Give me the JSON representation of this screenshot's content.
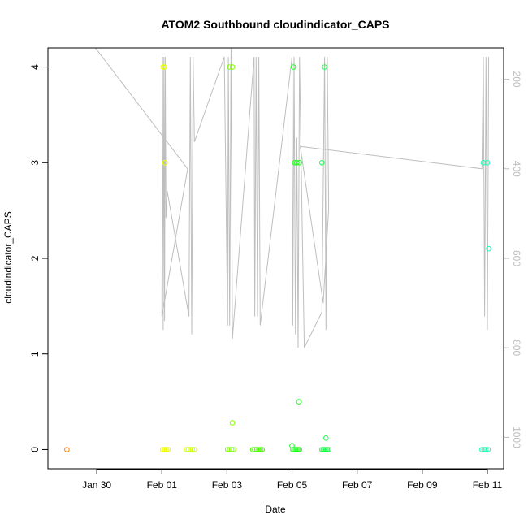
{
  "chart_data": {
    "type": "scatter",
    "title": "ATOM2 Southbound cloudindicator_CAPS",
    "xlabel": "Date",
    "ylabel": "cloudindicator_CAPS",
    "xlim": [
      "2024-01-28 12:00",
      "2024-02-11 12:00"
    ],
    "ylim": [
      -0.2,
      4.2
    ],
    "x_ticks": [
      {
        "date": "2024-01-30",
        "label": "Jan 30"
      },
      {
        "date": "2024-02-01",
        "label": "Feb 01"
      },
      {
        "date": "2024-02-03",
        "label": "Feb 03"
      },
      {
        "date": "2024-02-05",
        "label": "Feb 05"
      },
      {
        "date": "2024-02-07",
        "label": "Feb 07"
      },
      {
        "date": "2024-02-09",
        "label": "Feb 09"
      },
      {
        "date": "2024-02-11",
        "label": "Feb 11"
      }
    ],
    "y_ticks": [
      0,
      1,
      2,
      3,
      4
    ],
    "right_axis": {
      "ticks": [
        "200",
        "400",
        "600",
        "800",
        "1000"
      ],
      "values": [
        200,
        400,
        600,
        800,
        1000
      ],
      "range": [
        1070,
        130
      ],
      "color": "#bebebe",
      "reversed": true
    },
    "grid": false,
    "legend": "none",
    "series": [
      {
        "color": "#ff7f00",
        "points": [
          [
            "2024-01-29 02:00",
            0
          ]
        ]
      },
      {
        "color": "#eeff00",
        "points": [
          [
            "2024-02-01 01:00",
            4
          ],
          [
            "2024-02-01 01:50",
            4
          ],
          [
            "2024-02-01 02:20",
            3
          ],
          [
            "2024-02-01 00:30",
            0
          ],
          [
            "2024-02-01 01:30",
            0
          ],
          [
            "2024-02-01 02:30",
            0
          ],
          [
            "2024-02-01 03:30",
            0
          ],
          [
            "2024-02-01 04:30",
            0
          ]
        ]
      },
      {
        "color": "#c8ff00",
        "points": [
          [
            "2024-02-01 18:00",
            0
          ],
          [
            "2024-02-01 19:30",
            0
          ],
          [
            "2024-02-01 21:00",
            0
          ],
          [
            "2024-02-01 22:30",
            0
          ],
          [
            "2024-02-02 00:00",
            0
          ]
        ]
      },
      {
        "color": "#7fff00",
        "points": [
          [
            "2024-02-03 02:00",
            4
          ],
          [
            "2024-02-03 04:00",
            4
          ],
          [
            "2024-02-03 04:00",
            0.28
          ],
          [
            "2024-02-03 00:30",
            0
          ],
          [
            "2024-02-03 02:00",
            0
          ],
          [
            "2024-02-03 03:30",
            0
          ],
          [
            "2024-02-03 05:00",
            0
          ]
        ]
      },
      {
        "color": "#4cff00",
        "points": [
          [
            "2024-02-03 19:00",
            0
          ],
          [
            "2024-02-03 20:30",
            0
          ],
          [
            "2024-02-03 22:00",
            0
          ],
          [
            "2024-02-03 23:30",
            0
          ],
          [
            "2024-02-04 01:00",
            0
          ],
          [
            "2024-02-04 02:00",
            0
          ]
        ]
      },
      {
        "color": "#1aff1a",
        "points": [
          [
            "2024-02-05 01:00",
            4
          ],
          [
            "2024-02-05 02:00",
            3
          ],
          [
            "2024-02-05 03:30",
            3
          ],
          [
            "2024-02-05 05:30",
            3
          ],
          [
            "2024-02-05 00:00",
            0.04
          ],
          [
            "2024-02-05 05:00",
            0.5
          ],
          [
            "2024-02-05 00:30",
            0
          ],
          [
            "2024-02-05 01:30",
            0
          ],
          [
            "2024-02-05 02:30",
            0
          ],
          [
            "2024-02-05 03:30",
            0
          ],
          [
            "2024-02-05 04:30",
            0
          ],
          [
            "2024-02-05 05:30",
            0
          ]
        ]
      },
      {
        "color": "#1aff4c",
        "points": [
          [
            "2024-02-05 22:00",
            3
          ],
          [
            "2024-02-06 00:00",
            4
          ],
          [
            "2024-02-06 01:00",
            0.12
          ],
          [
            "2024-02-05 22:00",
            0
          ],
          [
            "2024-02-05 23:00",
            0
          ],
          [
            "2024-02-06 00:00",
            0
          ],
          [
            "2024-02-06 01:00",
            0
          ],
          [
            "2024-02-06 02:00",
            0
          ],
          [
            "2024-02-06 03:00",
            0
          ]
        ]
      },
      {
        "color": "#1affb3",
        "points": [
          [
            "2024-02-10 21:00",
            3
          ],
          [
            "2024-02-11 00:00",
            3
          ],
          [
            "2024-02-11 01:00",
            2.1
          ],
          [
            "2024-02-10 20:00",
            0
          ],
          [
            "2024-02-10 21:30",
            0
          ],
          [
            "2024-02-10 23:00",
            0
          ],
          [
            "2024-02-11 00:30",
            0
          ]
        ]
      }
    ],
    "secondary_line": {
      "color": "#bebebe",
      "axis": "right",
      "points": [
        [
          "2024-01-29 23:00",
          130
        ],
        [
          "2024-02-01 19:00",
          400
        ],
        [
          "2024-02-01 00:00",
          730
        ],
        [
          "2024-02-01 00:30",
          150
        ],
        [
          "2024-02-01 01:00",
          760
        ],
        [
          "2024-02-01 01:30",
          150
        ],
        [
          "2024-02-01 02:00",
          740
        ],
        [
          "2024-02-01 02:30",
          150
        ],
        [
          "2024-02-01 03:00",
          510
        ],
        [
          "2024-02-01 04:00",
          450
        ],
        [
          "2024-02-01 20:00",
          730
        ],
        [
          "2024-02-01 21:00",
          150
        ],
        [
          "2024-02-01 22:00",
          770
        ],
        [
          "2024-02-01 23:00",
          150
        ],
        [
          "2024-02-02 00:00",
          340
        ],
        [
          "2024-02-02 22:00",
          150
        ],
        [
          "2024-02-03 00:30",
          750
        ],
        [
          "2024-02-03 01:00",
          150
        ],
        [
          "2024-02-03 02:00",
          750
        ],
        [
          "2024-02-03 03:00",
          130
        ],
        [
          "2024-02-03 04:00",
          780
        ],
        [
          "2024-02-03 20:00",
          150
        ],
        [
          "2024-02-03 20:30",
          730
        ],
        [
          "2024-02-03 21:30",
          150
        ],
        [
          "2024-02-03 22:30",
          730
        ],
        [
          "2024-02-03 23:30",
          150
        ],
        [
          "2024-02-04 00:30",
          750
        ],
        [
          "2024-02-05 00:00",
          150
        ],
        [
          "2024-02-05 00:30",
          750
        ],
        [
          "2024-02-05 01:30",
          150
        ],
        [
          "2024-02-05 02:30",
          770
        ],
        [
          "2024-02-05 03:30",
          330
        ],
        [
          "2024-02-05 04:30",
          800
        ],
        [
          "2024-02-05 05:30",
          150
        ],
        [
          "2024-02-05 06:30",
          350
        ],
        [
          "2024-02-05 09:00",
          800
        ],
        [
          "2024-02-05 22:00",
          720
        ],
        [
          "2024-02-06 00:00",
          150
        ],
        [
          "2024-02-06 01:00",
          760
        ],
        [
          "2024-02-06 02:00",
          150
        ],
        [
          "2024-02-06 03:00",
          490
        ],
        [
          "2024-02-05 23:00",
          700
        ],
        [
          "2024-02-05 06:00",
          350
        ],
        [
          "2024-02-10 20:00",
          400
        ],
        [
          "2024-02-10 21:00",
          150
        ],
        [
          "2024-02-10 22:00",
          730
        ],
        [
          "2024-02-10 23:00",
          150
        ],
        [
          "2024-02-11 00:00",
          760
        ],
        [
          "2024-02-11 01:00",
          150
        ]
      ]
    }
  }
}
